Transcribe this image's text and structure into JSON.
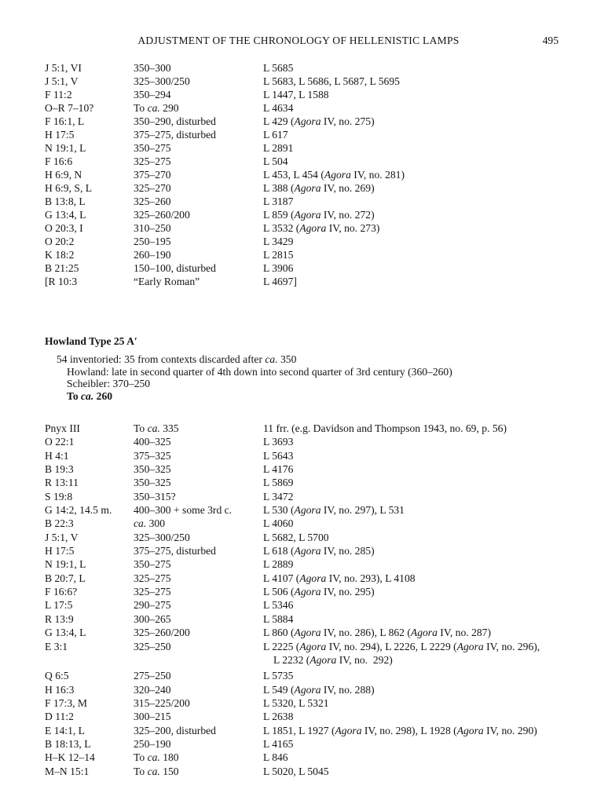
{
  "header": {
    "title": "ADJUSTMENT OF THE CHRONOLOGY OF HELLENISTIC LAMPS",
    "page_number": "495"
  },
  "table1": {
    "rows": [
      {
        "deposit": "J 5:1, VI",
        "date": "350–300",
        "lamps": "L 5685"
      },
      {
        "deposit": "J 5:1, V",
        "date": "325–300/250",
        "lamps": "L 5683, L 5686, L 5687, L 5695"
      },
      {
        "deposit": "F 11:2",
        "date": "350–294",
        "lamps": "L 1447, L 1588"
      },
      {
        "deposit": "O–R 7–10?",
        "date": "To ca. 290",
        "lamps": "L 4634"
      },
      {
        "deposit": "F 16:1, L",
        "date": "350–290, disturbed",
        "lamps": "L 429 (Agora IV, no. 275)"
      },
      {
        "deposit": "H 17:5",
        "date": "375–275, disturbed",
        "lamps": "L 617"
      },
      {
        "deposit": "N 19:1, L",
        "date": "350–275",
        "lamps": "L 2891"
      },
      {
        "deposit": "F 16:6",
        "date": "325–275",
        "lamps": "L 504"
      },
      {
        "deposit": "H 6:9, N",
        "date": "375–270",
        "lamps": "L 453, L 454 (Agora IV, no. 281)"
      },
      {
        "deposit": "H 6:9, S, L",
        "date": "325–270",
        "lamps": "L 388 (Agora IV, no. 269)"
      },
      {
        "deposit": "B 13:8, L",
        "date": "325–260",
        "lamps": "L 3187"
      },
      {
        "deposit": "G 13:4, L",
        "date": "325–260/200",
        "lamps": "L 859 (Agora IV, no. 272)"
      },
      {
        "deposit": "O 20:3, I",
        "date": "310–250",
        "lamps": "L 3532 (Agora IV, no. 273)"
      },
      {
        "deposit": "O 20:2",
        "date": "250–195",
        "lamps": "L 3429"
      },
      {
        "deposit": "K 18:2",
        "date": "260–190",
        "lamps": "L 2815"
      },
      {
        "deposit": "B 21:25",
        "date": "150–100, disturbed",
        "lamps": "L 3906"
      },
      {
        "deposit": "[R 10:3",
        "date": "“Early Roman”",
        "lamps": "L 4697]"
      }
    ]
  },
  "section": {
    "heading": "Howland Type 25 A′",
    "lines": [
      "54 inventoried: 35 from contexts discarded after ca. 350",
      "Howland: late in second quarter of 4th down into second quarter of 3rd century (360–260)",
      "Scheibler: 370–250",
      "To ca. 260"
    ]
  },
  "table2": {
    "rows": [
      {
        "deposit": "Pnyx III",
        "date": "To ca. 335",
        "lamps": "11 frr. (e.g. Davidson and Thompson 1943, no. 69, p. 56)"
      },
      {
        "deposit": "O 22:1",
        "date": "400–325",
        "lamps": "L 3693"
      },
      {
        "deposit": "H 4:1",
        "date": "375–325",
        "lamps": "L 5643"
      },
      {
        "deposit": "B 19:3",
        "date": "350–325",
        "lamps": "L 4176"
      },
      {
        "deposit": "R 13:11",
        "date": "350–325",
        "lamps": "L 5869"
      },
      {
        "deposit": "S 19:8",
        "date": "350–315?",
        "lamps": "L 3472"
      },
      {
        "deposit": "G 14:2, 14.5 m.",
        "date": "400–300 + some 3rd c.",
        "lamps": "L 530 (Agora IV, no. 297), L 531"
      },
      {
        "deposit": "B 22:3",
        "date": "ca. 300",
        "lamps": "L 4060"
      },
      {
        "deposit": "J 5:1, V",
        "date": "325–300/250",
        "lamps": "L 5682, L 5700"
      },
      {
        "deposit": "H 17:5",
        "date": "375–275, disturbed",
        "lamps": "L 618 (Agora IV, no. 285)"
      },
      {
        "deposit": "N 19:1, L",
        "date": "350–275",
        "lamps": "L 2889"
      },
      {
        "deposit": "B 20:7, L",
        "date": "325–275",
        "lamps": "L 4107 (Agora IV, no. 293), L 4108"
      },
      {
        "deposit": "F 16:6?",
        "date": "325–275",
        "lamps": "L 506 (Agora IV, no. 295)"
      },
      {
        "deposit": "L 17:5",
        "date": "290–275",
        "lamps": "L 5346"
      },
      {
        "deposit": "R 13:9",
        "date": "300–265",
        "lamps": "L 5884"
      },
      {
        "deposit": "G 13:4, L",
        "date": "325–260/200",
        "lamps": "L 860 (Agora IV, no. 286), L 862 (Agora IV, no. 287)"
      },
      {
        "deposit": "E 3:1",
        "date": "325–250",
        "lamps": "L 2225 (Agora IV, no. 294), L 2226, L 2229 (Agora IV, no. 296),",
        "lamps_line2": "L 2232 (Agora IV, no.  292)"
      },
      {
        "deposit": "Q 6:5",
        "date": "275–250",
        "lamps": "L 5735"
      },
      {
        "deposit": "H 16:3",
        "date": "320–240",
        "lamps": "L 549 (Agora IV, no. 288)"
      },
      {
        "deposit": "F 17:3, M",
        "date": "315–225/200",
        "lamps": "L 5320, L 5321"
      },
      {
        "deposit": "D 11:2",
        "date": "300–215",
        "lamps": "L 2638"
      },
      {
        "deposit": "E 14:1, L",
        "date": "325–200, disturbed",
        "lamps": "L 1851, L 1927 (Agora IV, no. 298), L 1928 (Agora IV, no. 290)"
      },
      {
        "deposit": "B 18:13, L",
        "date": "250–190",
        "lamps": "L 4165"
      },
      {
        "deposit": "H–K 12–14",
        "date": "To ca. 180",
        "lamps": "L 846"
      },
      {
        "deposit": "M–N 15:1",
        "date": "To ca. 150",
        "lamps": "L 5020, L 5045"
      }
    ]
  }
}
